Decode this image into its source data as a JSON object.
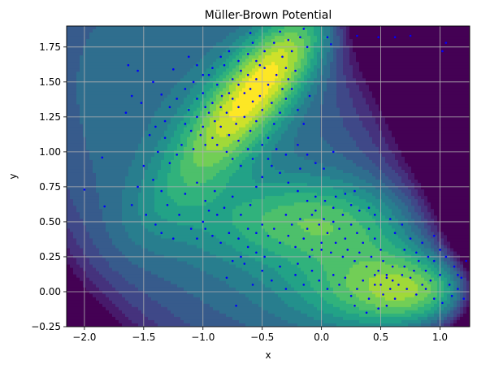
{
  "chart_data": {
    "type": "scatter",
    "title": "Müller-Brown Potential",
    "xlabel": "x",
    "ylabel": "y",
    "xlim": [
      -2.15,
      1.25
    ],
    "ylim": [
      -0.25,
      1.9
    ],
    "grid": true,
    "background": "filled contour (viridis colormap) of the Müller-Brown potential",
    "colormap": "viridis",
    "point_color": "#0000ff",
    "xticks": [
      {
        "value": -2.0,
        "label": "−2.0"
      },
      {
        "value": -1.5,
        "label": "−1.5"
      },
      {
        "value": -1.0,
        "label": "−1.0"
      },
      {
        "value": -0.5,
        "label": "−0.5"
      },
      {
        "value": 0.0,
        "label": "0.0"
      },
      {
        "value": 0.5,
        "label": "0.5"
      },
      {
        "value": 1.0,
        "label": "1.0"
      }
    ],
    "yticks": [
      {
        "value": -0.25,
        "label": "−0.25"
      },
      {
        "value": 0.0,
        "label": "0.00"
      },
      {
        "value": 0.25,
        "label": "0.25"
      },
      {
        "value": 0.5,
        "label": "0.50"
      },
      {
        "value": 0.75,
        "label": "0.75"
      },
      {
        "value": 1.0,
        "label": "1.00"
      },
      {
        "value": 1.25,
        "label": "1.25"
      },
      {
        "value": 1.5,
        "label": "1.50"
      },
      {
        "value": 1.75,
        "label": "1.75"
      }
    ],
    "series": [
      {
        "points": [
          [
            -1.63,
            1.62
          ],
          [
            -1.55,
            1.58
          ],
          [
            -1.42,
            1.5
          ],
          [
            -1.35,
            1.41
          ],
          [
            -1.25,
            1.59
          ],
          [
            -1.12,
            1.68
          ],
          [
            -1.05,
            1.62
          ],
          [
            -1.0,
            1.42
          ],
          [
            -0.95,
            1.55
          ],
          [
            -0.88,
            1.48
          ],
          [
            -0.82,
            1.62
          ],
          [
            -0.75,
            1.52
          ],
          [
            -0.68,
            1.58
          ],
          [
            -0.62,
            1.7
          ],
          [
            -0.55,
            1.65
          ],
          [
            -0.48,
            1.72
          ],
          [
            -0.4,
            1.78
          ],
          [
            -0.33,
            1.68
          ],
          [
            -0.3,
            1.6
          ],
          [
            -0.25,
            1.72
          ],
          [
            -0.18,
            1.82
          ],
          [
            -0.12,
            1.75
          ],
          [
            -0.55,
            1.52
          ],
          [
            -0.6,
            1.45
          ],
          [
            -0.52,
            1.4
          ],
          [
            -0.45,
            1.48
          ],
          [
            -0.38,
            1.55
          ],
          [
            -0.42,
            1.35
          ],
          [
            -0.5,
            1.3
          ],
          [
            -0.58,
            1.36
          ],
          [
            -0.65,
            1.42
          ],
          [
            -0.7,
            1.32
          ],
          [
            -0.75,
            1.38
          ],
          [
            -0.8,
            1.28
          ],
          [
            -0.85,
            1.32
          ],
          [
            -0.9,
            1.22
          ],
          [
            -0.95,
            1.28
          ],
          [
            -1.0,
            1.18
          ],
          [
            -1.05,
            1.25
          ],
          [
            -1.1,
            1.15
          ],
          [
            -1.15,
            1.2
          ],
          [
            -0.72,
            1.2
          ],
          [
            -0.65,
            1.25
          ],
          [
            -0.6,
            1.15
          ],
          [
            -0.55,
            1.22
          ],
          [
            -0.78,
            1.12
          ],
          [
            -0.85,
            1.18
          ],
          [
            -0.92,
            1.1
          ],
          [
            -0.98,
            1.05
          ],
          [
            -1.02,
            1.12
          ],
          [
            -1.08,
            1.02
          ],
          [
            -0.88,
            1.05
          ],
          [
            -0.8,
            1.0
          ],
          [
            -0.7,
            1.08
          ],
          [
            -0.62,
            1.02
          ],
          [
            -0.75,
            0.95
          ],
          [
            -0.68,
            0.9
          ],
          [
            -0.58,
            0.95
          ],
          [
            -0.5,
            1.05
          ],
          [
            -0.45,
            1.1
          ],
          [
            -0.4,
            1.2
          ],
          [
            -0.35,
            1.28
          ],
          [
            -0.3,
            1.38
          ],
          [
            -0.25,
            1.45
          ],
          [
            -0.2,
            1.3
          ],
          [
            -0.15,
            1.2
          ],
          [
            -0.1,
            1.4
          ],
          [
            -0.33,
            1.45
          ],
          [
            -0.28,
            1.52
          ],
          [
            -0.22,
            1.58
          ],
          [
            -0.48,
            1.6
          ],
          [
            -0.52,
            1.62
          ],
          [
            -0.62,
            1.55
          ],
          [
            -0.7,
            1.48
          ],
          [
            -0.78,
            1.42
          ],
          [
            -0.84,
            1.4
          ],
          [
            -0.92,
            1.35
          ],
          [
            -0.98,
            1.32
          ],
          [
            -1.05,
            1.38
          ],
          [
            -1.12,
            1.3
          ],
          [
            -1.18,
            1.05
          ],
          [
            -1.22,
            0.98
          ],
          [
            -1.28,
            0.92
          ],
          [
            -1.32,
            1.1
          ],
          [
            -1.38,
            1.0
          ],
          [
            -1.45,
            1.12
          ],
          [
            -1.5,
            0.9
          ],
          [
            -1.42,
            0.8
          ],
          [
            -1.35,
            0.72
          ],
          [
            -1.55,
            0.75
          ],
          [
            -1.6,
            0.62
          ],
          [
            -1.48,
            0.55
          ],
          [
            -1.4,
            0.48
          ],
          [
            -1.3,
            0.62
          ],
          [
            -1.2,
            0.55
          ],
          [
            -1.15,
            0.7
          ],
          [
            -1.05,
            0.78
          ],
          [
            -0.98,
            0.65
          ],
          [
            -0.9,
            0.72
          ],
          [
            -0.82,
            0.6
          ],
          [
            -0.75,
            0.68
          ],
          [
            -0.68,
            0.55
          ],
          [
            -0.6,
            0.62
          ],
          [
            -0.55,
            0.75
          ],
          [
            -0.5,
            0.82
          ],
          [
            -0.42,
            0.9
          ],
          [
            -0.35,
            0.85
          ],
          [
            -0.28,
            0.78
          ],
          [
            -0.2,
            0.72
          ],
          [
            -0.12,
            0.65
          ],
          [
            -0.05,
            0.58
          ],
          [
            0.02,
            0.52
          ],
          [
            -2.0,
            0.73
          ],
          [
            -1.85,
            0.96
          ],
          [
            -1.83,
            0.61
          ],
          [
            -1.65,
            1.28
          ],
          [
            -1.52,
            1.35
          ],
          [
            -1.6,
            1.4
          ],
          [
            0.05,
            1.82
          ],
          [
            0.08,
            1.77
          ],
          [
            0.3,
            1.83
          ],
          [
            0.48,
            1.82
          ],
          [
            0.62,
            1.82
          ],
          [
            0.75,
            1.83
          ],
          [
            1.05,
            1.78
          ],
          [
            1.02,
            1.72
          ],
          [
            -1.35,
            0.42
          ],
          [
            -1.25,
            0.38
          ],
          [
            -0.3,
            0.55
          ],
          [
            -0.25,
            0.48
          ],
          [
            -0.18,
            0.52
          ],
          [
            -0.12,
            0.45
          ],
          [
            -0.08,
            0.55
          ],
          [
            -0.02,
            0.48
          ],
          [
            0.05,
            0.42
          ],
          [
            0.1,
            0.5
          ],
          [
            0.15,
            0.45
          ],
          [
            0.2,
            0.38
          ],
          [
            0.25,
            0.48
          ],
          [
            0.3,
            0.42
          ],
          [
            0.35,
            0.35
          ],
          [
            0.4,
            0.45
          ],
          [
            0.45,
            0.38
          ],
          [
            0.5,
            0.3
          ],
          [
            -0.4,
            0.45
          ],
          [
            -0.45,
            0.4
          ],
          [
            -0.5,
            0.48
          ],
          [
            -0.55,
            0.42
          ],
          [
            -0.62,
            0.45
          ],
          [
            -0.7,
            0.38
          ],
          [
            -0.78,
            0.42
          ],
          [
            -0.85,
            0.35
          ],
          [
            -0.92,
            0.4
          ],
          [
            -0.98,
            0.45
          ],
          [
            -1.05,
            0.38
          ],
          [
            -0.35,
            0.35
          ],
          [
            -0.28,
            0.4
          ],
          [
            -0.22,
            0.32
          ],
          [
            -0.15,
            0.38
          ],
          [
            -0.08,
            0.3
          ],
          [
            0.0,
            0.35
          ],
          [
            0.08,
            0.28
          ],
          [
            0.12,
            0.35
          ],
          [
            0.18,
            0.25
          ],
          [
            0.22,
            0.3
          ],
          [
            0.28,
            0.22
          ],
          [
            0.32,
            0.28
          ],
          [
            0.38,
            0.18
          ],
          [
            0.42,
            0.25
          ],
          [
            0.48,
            0.15
          ],
          [
            0.52,
            0.22
          ],
          [
            0.55,
            0.1
          ],
          [
            0.6,
            0.18
          ],
          [
            0.65,
            0.05
          ],
          [
            0.68,
            0.12
          ],
          [
            0.72,
            0.02
          ],
          [
            0.75,
            0.1
          ],
          [
            0.8,
            -0.02
          ],
          [
            0.85,
            0.05
          ],
          [
            0.88,
            0.15
          ],
          [
            0.92,
            0.08
          ],
          [
            0.95,
            0.22
          ],
          [
            1.0,
            0.12
          ],
          [
            1.05,
            0.25
          ],
          [
            1.08,
            0.05
          ],
          [
            1.12,
            0.18
          ],
          [
            1.15,
            0.02
          ],
          [
            1.18,
            0.1
          ],
          [
            1.22,
            0.22
          ],
          [
            1.2,
            -0.05
          ],
          [
            0.58,
            0.02
          ],
          [
            0.62,
            -0.05
          ],
          [
            0.52,
            -0.02
          ],
          [
            0.45,
            0.05
          ],
          [
            0.4,
            -0.05
          ],
          [
            0.35,
            0.08
          ],
          [
            0.3,
            0.02
          ],
          [
            0.25,
            -0.03
          ],
          [
            0.2,
            0.1
          ],
          [
            0.15,
            0.05
          ],
          [
            0.1,
            0.12
          ],
          [
            0.05,
            0.02
          ],
          [
            -0.02,
            0.08
          ],
          [
            -0.08,
            0.15
          ],
          [
            -0.15,
            0.05
          ],
          [
            -0.22,
            0.12
          ],
          [
            -0.3,
            0.02
          ],
          [
            -0.35,
            0.18
          ],
          [
            -0.42,
            0.08
          ],
          [
            -0.5,
            0.15
          ],
          [
            -0.58,
            0.05
          ],
          [
            -0.65,
            0.2
          ],
          [
            -0.72,
            -0.1
          ],
          [
            -0.8,
            0.1
          ],
          [
            0.7,
            0.3
          ],
          [
            0.75,
            0.38
          ],
          [
            0.8,
            0.28
          ],
          [
            0.85,
            0.35
          ],
          [
            0.9,
            0.25
          ],
          [
            0.95,
            0.4
          ],
          [
            1.0,
            0.3
          ],
          [
            0.62,
            0.42
          ],
          [
            0.68,
            0.48
          ],
          [
            0.58,
            0.52
          ],
          [
            0.45,
            0.55
          ],
          [
            0.4,
            0.6
          ],
          [
            0.32,
            0.58
          ],
          [
            0.25,
            0.62
          ],
          [
            0.18,
            0.55
          ],
          [
            0.1,
            0.6
          ],
          [
            0.03,
            0.65
          ],
          [
            -0.05,
            0.68
          ],
          [
            0.12,
            0.68
          ],
          [
            0.2,
            0.7
          ],
          [
            0.28,
            0.72
          ],
          [
            -0.6,
            1.85
          ],
          [
            -0.58,
            1.78
          ],
          [
            -0.35,
            1.86
          ],
          [
            -0.28,
            1.8
          ],
          [
            -0.15,
            1.88
          ],
          [
            -0.7,
            1.65
          ],
          [
            -0.78,
            1.72
          ],
          [
            -0.85,
            1.68
          ],
          [
            -0.92,
            1.6
          ],
          [
            -1.0,
            1.55
          ],
          [
            -1.08,
            1.5
          ],
          [
            -1.15,
            1.45
          ],
          [
            -1.22,
            1.38
          ],
          [
            -1.28,
            1.32
          ],
          [
            -1.32,
            1.22
          ],
          [
            -1.4,
            1.18
          ],
          [
            -0.2,
            1.05
          ],
          [
            -0.12,
            0.98
          ],
          [
            -0.05,
            0.92
          ],
          [
            0.02,
            0.88
          ],
          [
            0.1,
            1.0
          ],
          [
            -0.3,
            0.98
          ],
          [
            -0.38,
            1.02
          ],
          [
            -0.45,
            0.95
          ],
          [
            -0.18,
            0.88
          ],
          [
            0.0,
            0.3
          ],
          [
            -0.1,
            0.25
          ],
          [
            -0.2,
            0.2
          ],
          [
            -0.48,
            0.25
          ],
          [
            -0.55,
            0.28
          ],
          [
            -0.62,
            0.32
          ],
          [
            -0.68,
            0.25
          ],
          [
            -0.75,
            0.22
          ],
          [
            -0.88,
            0.55
          ],
          [
            -0.95,
            0.58
          ],
          [
            -1.0,
            0.5
          ],
          [
            -1.1,
            0.45
          ],
          [
            0.55,
            -0.1
          ],
          [
            0.48,
            -0.12
          ],
          [
            0.38,
            -0.15
          ],
          [
            0.28,
            -0.1
          ],
          [
            0.6,
            0.08
          ],
          [
            0.55,
            0.12
          ],
          [
            0.5,
            0.05
          ],
          [
            0.45,
            0.12
          ],
          [
            0.7,
            0.18
          ],
          [
            0.78,
            0.15
          ],
          [
            0.82,
            0.22
          ],
          [
            0.88,
            0.02
          ],
          [
            0.95,
            -0.05
          ],
          [
            1.02,
            -0.08
          ],
          [
            1.1,
            -0.03
          ],
          [
            1.15,
            0.12
          ]
        ]
      }
    ]
  }
}
